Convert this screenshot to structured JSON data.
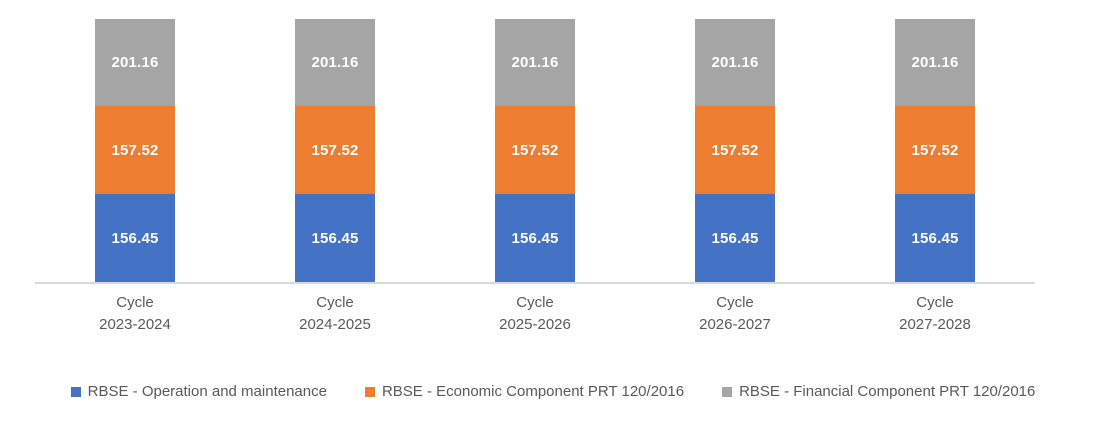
{
  "chart_data": {
    "type": "bar",
    "stacked": true,
    "title": "",
    "xlabel": "",
    "ylabel": "",
    "grid": false,
    "data_labels": true,
    "legend_position": "bottom",
    "categories": [
      "Cycle 2023-2024",
      "Cycle 2024-2025",
      "Cycle 2025-2026",
      "Cycle 2026-2027",
      "Cycle 2027-2028"
    ],
    "series": [
      {
        "name": "RBSE - Operation and maintenance",
        "color": "#4472C4",
        "values": [
          156.45,
          156.45,
          156.45,
          156.45,
          156.45
        ]
      },
      {
        "name": "RBSE - Economic Component PRT 120/2016",
        "color": "#ED7D31",
        "values": [
          157.52,
          157.52,
          157.52,
          157.52,
          157.52
        ]
      },
      {
        "name": "RBSE - Financial Component PRT 120/2016",
        "color": "#A5A5A5",
        "values": [
          201.16,
          201.16,
          201.16,
          201.16,
          201.16
        ]
      }
    ]
  },
  "xaxis": {
    "labels": [
      {
        "line1": "Cycle",
        "line2": "2023-2024"
      },
      {
        "line1": "Cycle",
        "line2": "2024-2025"
      },
      {
        "line1": "Cycle",
        "line2": "2025-2026"
      },
      {
        "line1": "Cycle",
        "line2": "2026-2027"
      },
      {
        "line1": "Cycle",
        "line2": "2027-2028"
      }
    ]
  },
  "legend": {
    "items": [
      {
        "label": "RBSE - Operation and maintenance",
        "color": "#4472C4"
      },
      {
        "label": "RBSE - Economic Component PRT 120/2016",
        "color": "#ED7D31"
      },
      {
        "label": "RBSE - Financial Component PRT 120/2016",
        "color": "#A5A5A5"
      }
    ]
  }
}
